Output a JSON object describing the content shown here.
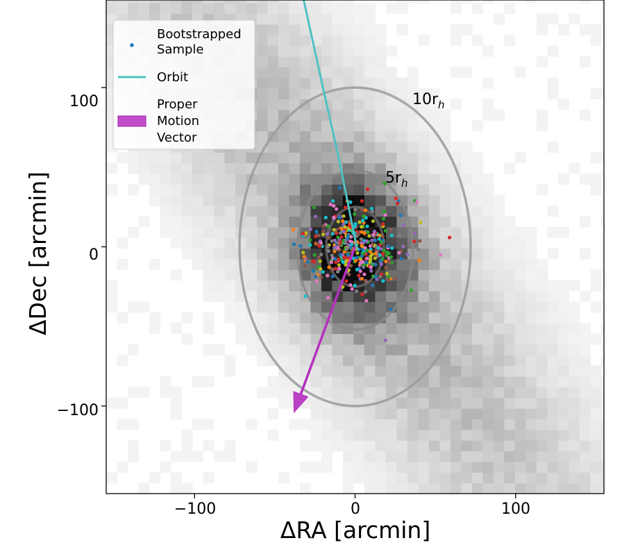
{
  "chart_data": {
    "type": "scatter",
    "xlabel": "ΔRA [arcmin]",
    "ylabel": "ΔDec [arcmin]",
    "xlim": [
      -155,
      155
    ],
    "ylim": [
      -155,
      155
    ],
    "x_ticks": [
      -100,
      0,
      100
    ],
    "y_ticks": [
      -100,
      0,
      100
    ],
    "x_tick_labels": [
      "−100",
      "0",
      "100"
    ],
    "y_tick_labels": [
      "−100",
      "0",
      "100"
    ],
    "grid": false,
    "legend_position": "top-left",
    "background_histogram": {
      "description_colormap": "greys",
      "bin_size": 6.7,
      "core_center": [
        0,
        0
      ],
      "elongation_angle_deg": 125
    },
    "series": [
      {
        "name": "Bootstrapped Sample",
        "kind": "scatter",
        "color": "#1f77b4",
        "n_points": 420
      },
      {
        "name": "Orbit",
        "kind": "line",
        "color": "#4fc1c3",
        "x": [
          -32,
          -20,
          -10,
          -4,
          0,
          1,
          2
        ],
        "y": [
          155,
          100,
          55,
          25,
          5,
          0,
          -2
        ]
      },
      {
        "name": "Proper Motion Vector",
        "kind": "arrow",
        "color": "#b52fbf",
        "start": [
          0,
          0
        ],
        "end": [
          -38,
          -104
        ]
      }
    ],
    "ellipses": [
      {
        "label_main": "5r",
        "label_sub": "h",
        "center": [
          0,
          -2
        ],
        "semi_x": 36,
        "semi_y": 50,
        "color": "#888888"
      },
      {
        "label_main": "10r",
        "label_sub": "h",
        "center": [
          0,
          0
        ],
        "semi_x": 72,
        "semi_y": 100,
        "color": "#9a9a9a"
      },
      {
        "label_main": "",
        "label_sub": "",
        "center": [
          0,
          0
        ],
        "semi_x": 18,
        "semi_y": 25,
        "color": "#666666"
      }
    ],
    "annotations": [
      {
        "text_main": "10r",
        "text_sub": "h",
        "x": 35,
        "y": 100
      },
      {
        "text_main": "5r",
        "text_sub": "h",
        "x": 18,
        "y": 47
      }
    ]
  },
  "legend": {
    "bootstrapped_line1": "Bootstrapped",
    "bootstrapped_line2": "Sample",
    "orbit": "Orbit",
    "pm_line1": "Proper",
    "pm_line2": "Motion",
    "pm_line3": "Vector"
  },
  "point_palette": [
    "#1f77b4",
    "#ff7f0e",
    "#2ca02c",
    "#d62728",
    "#9467bd",
    "#8c564b",
    "#e377c2",
    "#7f7f7f",
    "#bcbd22",
    "#17becf"
  ]
}
